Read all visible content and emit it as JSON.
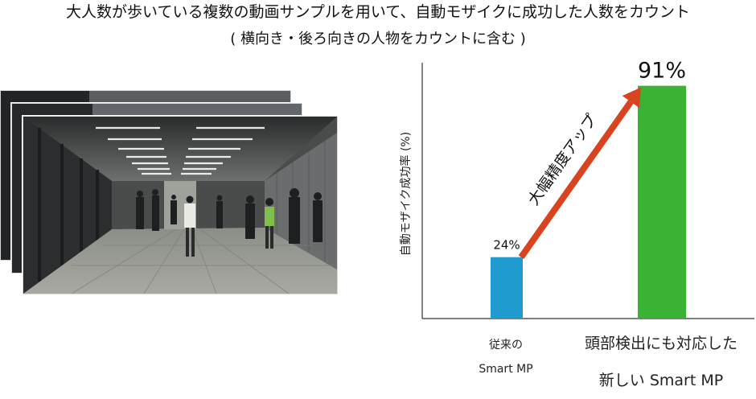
{
  "header": {
    "title_line1": "大人数が歩いている複数の動画サンプルを用いて、自動モザイクに成功した人数をカウント",
    "title_line2": "( 横向き・後ろ向きの人物をカウントに含む )"
  },
  "photo": {
    "description_icon": "subway-passage-crowd-photo",
    "frames_shown": 3
  },
  "chart_data": {
    "type": "bar",
    "categories": [
      "従来の Smart MP",
      "頭部検出にも対応した 新しい Smart MP"
    ],
    "category_lines": [
      [
        "従来の",
        "Smart MP"
      ],
      [
        "頭部検出にも対応した",
        "新しい Smart MP"
      ]
    ],
    "values": [
      24,
      91
    ],
    "data_labels": [
      "24%",
      "91%"
    ],
    "ylabel": "自動モザイク成功率 (%)",
    "ylim": [
      0,
      100
    ],
    "grid": false,
    "legend": "none",
    "annotation": "大幅精度アップ",
    "colors": {
      "bars": [
        "#1f9bd0",
        "#3ab234"
      ],
      "arrow": "#d8441f",
      "axis": "#333333"
    }
  }
}
